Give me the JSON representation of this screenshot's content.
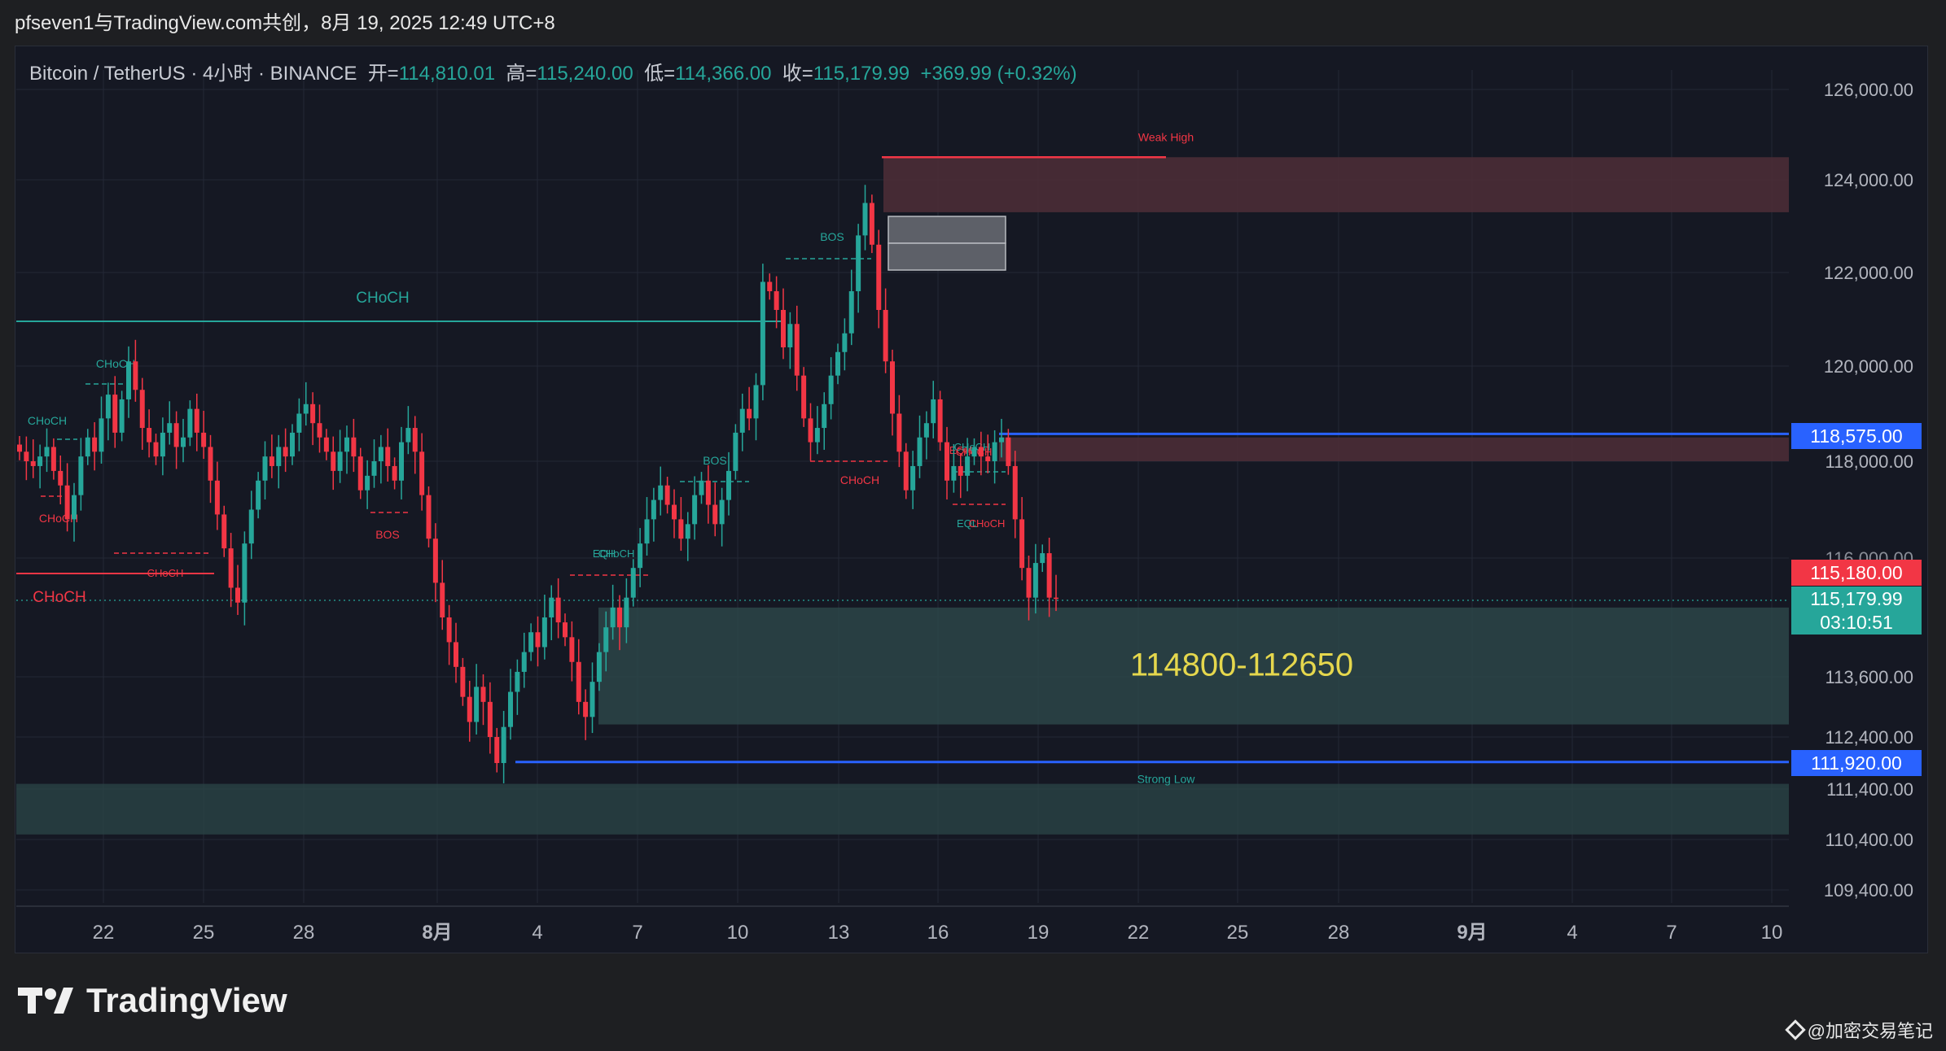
{
  "header": {
    "title": "pfseven1与TradingView.com共创，8月 19, 2025 12:49 UTC+8"
  },
  "legend": {
    "symbol": "Bitcoin / TetherUS · 4小时 · BINANCE",
    "open_label": "开=",
    "open": "114,810.01",
    "high_label": "高=",
    "high": "115,240.00",
    "low_label": "低=",
    "low": "114,366.00",
    "close_label": "收=",
    "close": "115,179.99",
    "change": "+369.99 (+0.32%)"
  },
  "colors": {
    "up": "#26a69a",
    "down": "#f23645",
    "background": "#151823",
    "supply_zone": "#4a2c36",
    "demand_zone": "#2b4548",
    "blue_level": "#2962ff"
  },
  "footer": {
    "brand": "TradingView",
    "watermark": "@加密交易笔记"
  },
  "chart_data": {
    "type": "candlestick",
    "y_axis_ticks": [
      "126,000.00",
      "124,000.00",
      "122,000.00",
      "120,000.00",
      "118,000.00",
      "116,000.00",
      "113,600.00",
      "112,400.00",
      "111,400.00",
      "110,400.00",
      "109,400.00"
    ],
    "x_axis_ticks": [
      "22",
      "25",
      "28",
      "8月",
      "4",
      "7",
      "10",
      "13",
      "16",
      "19",
      "22",
      "25",
      "28",
      "9月",
      "4",
      "7",
      "10"
    ],
    "price_labels": [
      {
        "value": "118,575.00",
        "color": "#2962ff"
      },
      {
        "value": "115,180.00",
        "color": "#f23645"
      },
      {
        "value": "115,179.99",
        "color": "#26a69a"
      },
      {
        "value": "03:10:51",
        "color": "#26a69a"
      },
      {
        "value": "111,920.00",
        "color": "#2962ff"
      }
    ],
    "zones": [
      {
        "name": "supply-zone-top",
        "from": 123300,
        "to": 124500
      },
      {
        "name": "supply-zone-mid",
        "from": 118000,
        "to": 118500
      },
      {
        "name": "demand-zone-main",
        "from": 112650,
        "to": 115000,
        "label": "114800-112650"
      },
      {
        "name": "demand-zone-low",
        "from": 110500,
        "to": 111500
      }
    ],
    "levels": [
      {
        "name": "weak-high",
        "value": 124500,
        "label": "Weak High"
      },
      {
        "name": "strong-low",
        "value": 111920,
        "label": "Strong Low"
      },
      {
        "name": "resistance",
        "value": 118575
      }
    ],
    "annotations": [
      "CHoCH",
      "CHoCH",
      "CHoCH",
      "CHoCH",
      "BOS",
      "BOS",
      "BOS",
      "CHoCH",
      "CHoCH",
      "EQH",
      "CHoCH",
      "CHoCH",
      "EQH",
      "EQL",
      "CHoCH",
      "CHoCH",
      "CHoCH",
      "Weak High",
      "Strong Low"
    ],
    "approx_closes": [
      118200,
      118000,
      117900,
      118100,
      118300,
      117800,
      117500,
      116800,
      117300,
      118100,
      118500,
      118200,
      118900,
      119400,
      118600,
      119300,
      120100,
      119500,
      118700,
      118400,
      118100,
      118600,
      118800,
      118300,
      118500,
      119100,
      118600,
      118300,
      117600,
      116900,
      116200,
      115400,
      115100,
      116300,
      117000,
      117600,
      118100,
      117900,
      118300,
      118100,
      118600,
      119000,
      119200,
      118800,
      118500,
      118200,
      117800,
      118200,
      118500,
      118100,
      117400,
      117700,
      118000,
      118300,
      117900,
      117600,
      118400,
      118700,
      118200,
      117300,
      116400,
      115500,
      114800,
      114300,
      113800,
      113200,
      112700,
      113400,
      113100,
      112400,
      111900,
      112600,
      113300,
      113700,
      114100,
      114500,
      114200,
      114800,
      115200,
      114700,
      114400,
      113900,
      113100,
      112800,
      113500,
      114100,
      114600,
      115000,
      114600,
      115200,
      115800,
      116300,
      116800,
      117200,
      117500,
      117100,
      116800,
      116400,
      116700,
      117300,
      117600,
      117100,
      116700,
      117200,
      117800,
      118600,
      119100,
      118900,
      119600,
      121800,
      121600,
      121200,
      120400,
      120900,
      119800,
      118900,
      118400,
      118700,
      119200,
      119800,
      120300,
      120700,
      121600,
      122800,
      123500,
      122600,
      121200,
      120100,
      119000,
      118200,
      117400,
      117900,
      118500,
      118800,
      119300,
      118400,
      117600,
      117900,
      117700,
      118100,
      118300,
      118100,
      118000,
      118400,
      118500,
      117900,
      116800,
      115800,
      115200,
      115900,
      116100,
      115200,
      115179.99
    ]
  }
}
